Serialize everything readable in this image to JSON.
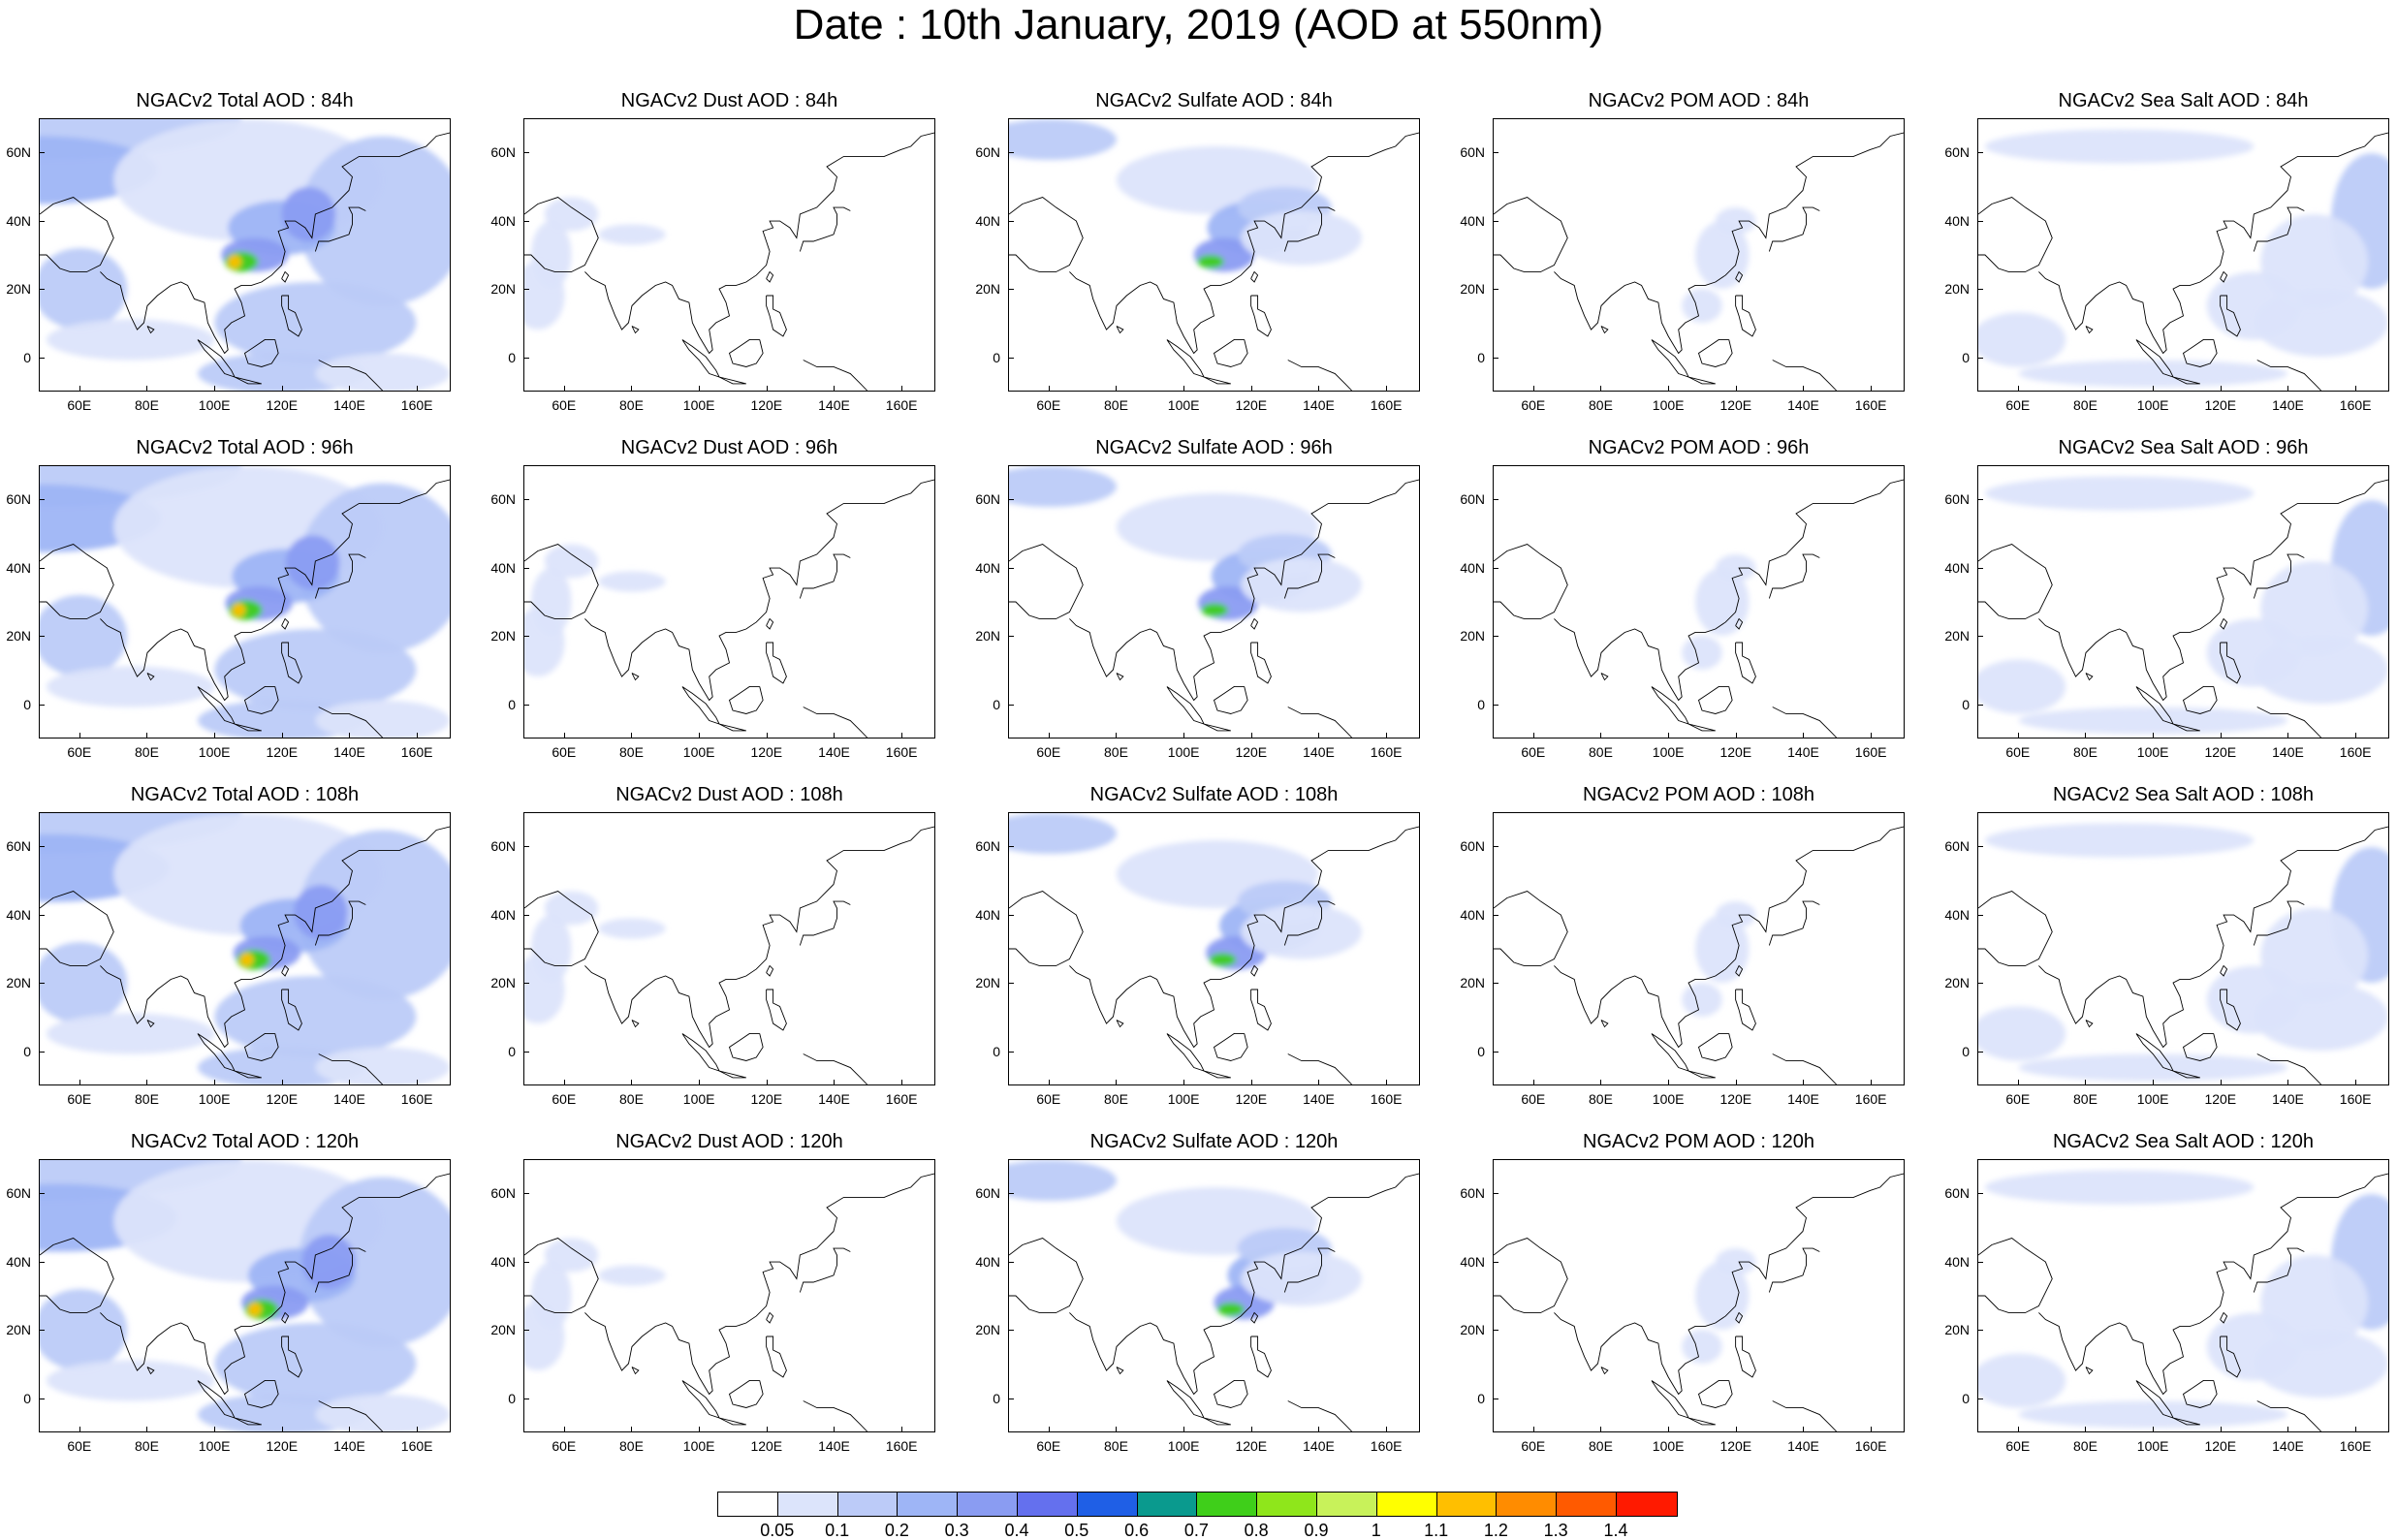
{
  "title": "Date : 10th January, 2019 (AOD at 550nm)",
  "axis": {
    "x_ticks": [
      "60E",
      "80E",
      "100E",
      "120E",
      "140E",
      "160E"
    ],
    "y_ticks": [
      "60N",
      "40N",
      "20N",
      "0"
    ]
  },
  "panels": [
    {
      "title": "NGACv2 Total AOD : 84h",
      "species": "total",
      "hour": 84
    },
    {
      "title": "NGACv2 Dust AOD : 84h",
      "species": "dust",
      "hour": 84
    },
    {
      "title": "NGACv2 Sulfate AOD : 84h",
      "species": "sulfate",
      "hour": 84
    },
    {
      "title": "NGACv2 POM AOD : 84h",
      "species": "pom",
      "hour": 84
    },
    {
      "title": "NGACv2 Sea Salt AOD : 84h",
      "species": "seasalt",
      "hour": 84
    },
    {
      "title": "NGACv2 Total AOD : 96h",
      "species": "total",
      "hour": 96
    },
    {
      "title": "NGACv2 Dust AOD : 96h",
      "species": "dust",
      "hour": 96
    },
    {
      "title": "NGACv2 Sulfate AOD : 96h",
      "species": "sulfate",
      "hour": 96
    },
    {
      "title": "NGACv2 POM AOD : 96h",
      "species": "pom",
      "hour": 96
    },
    {
      "title": "NGACv2 Sea Salt AOD : 96h",
      "species": "seasalt",
      "hour": 96
    },
    {
      "title": "NGACv2 Total AOD : 108h",
      "species": "total",
      "hour": 108
    },
    {
      "title": "NGACv2 Dust AOD : 108h",
      "species": "dust",
      "hour": 108
    },
    {
      "title": "NGACv2 Sulfate AOD : 108h",
      "species": "sulfate",
      "hour": 108
    },
    {
      "title": "NGACv2 POM AOD : 108h",
      "species": "pom",
      "hour": 108
    },
    {
      "title": "NGACv2 Sea Salt AOD : 108h",
      "species": "seasalt",
      "hour": 108
    },
    {
      "title": "NGACv2 Total AOD : 120h",
      "species": "total",
      "hour": 120
    },
    {
      "title": "NGACv2 Dust AOD : 120h",
      "species": "dust",
      "hour": 120
    },
    {
      "title": "NGACv2 Sulfate AOD : 120h",
      "species": "sulfate",
      "hour": 120
    },
    {
      "title": "NGACv2 POM AOD : 120h",
      "species": "pom",
      "hour": 120
    },
    {
      "title": "NGACv2 Sea Salt  AOD : 120h",
      "species": "seasalt",
      "hour": 120
    }
  ],
  "colorbar": {
    "labels": [
      "0.05",
      "0.1",
      "0.2",
      "0.3",
      "0.4",
      "0.5",
      "0.6",
      "0.7",
      "0.8",
      "0.9",
      "1",
      "1.1",
      "1.2",
      "1.3",
      "1.4"
    ],
    "colors": [
      "#ffffff",
      "#dce4fb",
      "#bccbf8",
      "#9eb5f6",
      "#8a9cf2",
      "#6470ee",
      "#1f5fe6",
      "#0a9a8e",
      "#3fcf1a",
      "#8fe61b",
      "#c8f25a",
      "#ffff00",
      "#ffbf00",
      "#ff8c00",
      "#ff5a00",
      "#ff1a00"
    ]
  }
}
